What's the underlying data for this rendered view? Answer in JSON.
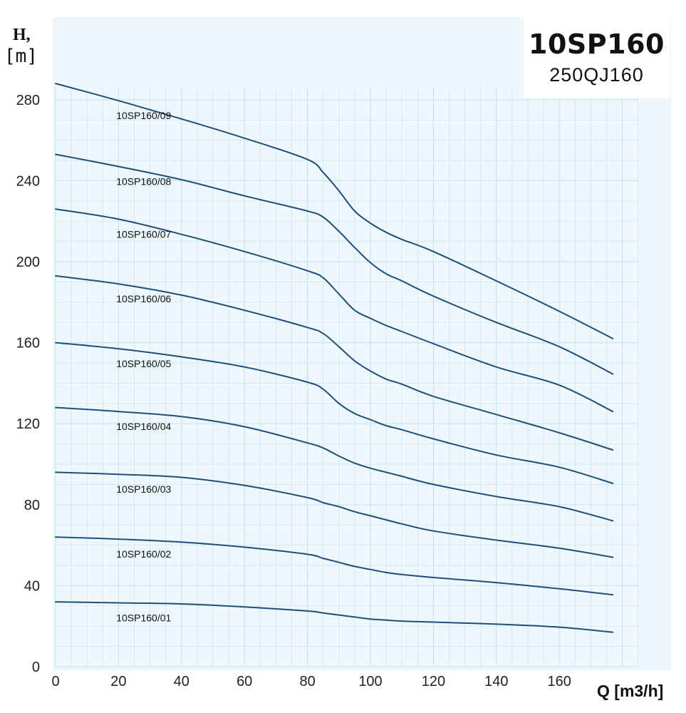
{
  "header": {
    "model": "10SP160",
    "alt_model": "250QJ160",
    "y_axis_label": "H,",
    "y_axis_unit": "[m]",
    "x_axis_label": "Q  [m3/h]"
  },
  "colors": {
    "curve": "#1f4e7a",
    "grid": "#c9e3ef",
    "plot_bg": "#eef8fc"
  },
  "chart_data": {
    "type": "line",
    "title": "10SP160",
    "subtitle": "250QJ160",
    "xlabel": "Q  [m3/h]",
    "ylabel": "H, [m]",
    "xlim": [
      0,
      185
    ],
    "ylim": [
      0,
      285
    ],
    "x_ticks": [
      0,
      20,
      40,
      60,
      80,
      100,
      120,
      140,
      160
    ],
    "y_ticks": [
      0,
      40,
      80,
      120,
      160,
      200,
      240,
      280
    ],
    "grid": true,
    "x": [
      0,
      20,
      40,
      60,
      80,
      85,
      90,
      95,
      100,
      105,
      110,
      120,
      140,
      160,
      177
    ],
    "series": [
      {
        "name": "10SP160/01",
        "values": [
          32,
          31.5,
          31,
          29.5,
          27.5,
          26.5,
          25.5,
          24.5,
          23.5,
          23,
          22.5,
          22,
          21,
          19.5,
          17
        ]
      },
      {
        "name": "10SP160/02",
        "values": [
          64,
          63,
          61.5,
          59,
          55.5,
          53.5,
          51.5,
          49.5,
          48,
          46.5,
          45.5,
          44,
          41.5,
          38.5,
          35.5
        ]
      },
      {
        "name": "10SP160/03",
        "values": [
          96,
          95,
          93.5,
          89.5,
          83.5,
          81,
          79,
          76.5,
          74.5,
          72.5,
          70.5,
          67,
          62.5,
          58.5,
          54
        ]
      },
      {
        "name": "10SP160/04",
        "values": [
          128,
          126,
          123.5,
          118.5,
          110.5,
          108,
          104,
          100.5,
          98,
          96,
          94,
          90,
          84,
          79,
          72
        ]
      },
      {
        "name": "10SP160/05",
        "values": [
          160,
          157,
          153,
          148,
          140.5,
          137,
          130,
          125,
          122,
          119,
          117,
          112.5,
          104.5,
          98.5,
          90.5
        ]
      },
      {
        "name": "10SP160/06",
        "values": [
          193,
          189,
          183.5,
          176,
          167.5,
          164.5,
          158,
          151,
          146,
          142,
          139.5,
          133.5,
          124.5,
          115.5,
          107
        ]
      },
      {
        "name": "10SP160/07",
        "values": [
          226,
          221,
          213.5,
          205,
          195.5,
          192,
          184,
          176,
          172,
          168.5,
          165.5,
          159.5,
          148,
          139,
          126
        ]
      },
      {
        "name": "10SP160/08",
        "values": [
          253,
          247,
          240.5,
          232.5,
          225,
          222,
          215,
          207,
          199.5,
          194,
          190.5,
          183,
          170,
          158,
          144.5
        ]
      },
      {
        "name": "10SP160/09",
        "values": [
          288,
          279.5,
          270.5,
          261,
          250.5,
          244,
          235,
          225,
          219,
          214.5,
          211,
          205,
          190.5,
          175.5,
          162
        ]
      }
    ]
  }
}
